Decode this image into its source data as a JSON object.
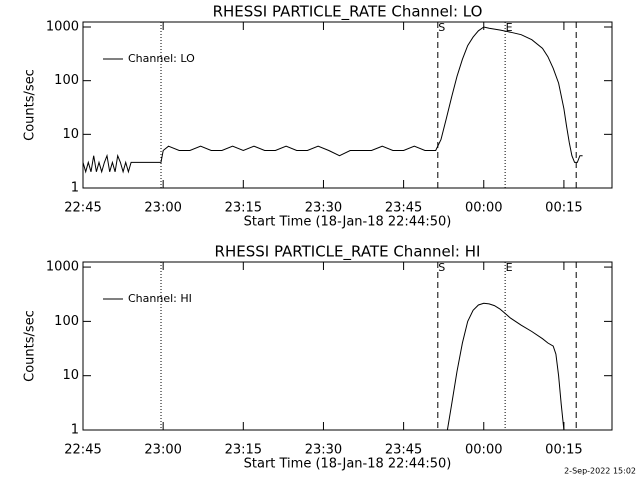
{
  "chart_data": [
    {
      "type": "line",
      "title": "RHESSI PARTICLE_RATE Channel: LO",
      "xlabel": "Start Time (18-Jan-18 22:44:50)",
      "ylabel": "Counts/sec",
      "log_y": true,
      "legend": "top-left",
      "color": "#000000",
      "xlim": [
        0,
        99
      ],
      "ylim": [
        1,
        1240
      ],
      "xticks": [
        {
          "value": 0,
          "label": "22:45"
        },
        {
          "value": 15,
          "label": "23:00"
        },
        {
          "value": 30,
          "label": "23:15"
        },
        {
          "value": 45,
          "label": "23:30"
        },
        {
          "value": 60,
          "label": "23:45"
        },
        {
          "value": 75,
          "label": "00:00"
        },
        {
          "value": 90,
          "label": "00:15"
        }
      ],
      "yticks": [
        1,
        10,
        100,
        1000
      ],
      "markers": [
        {
          "x": 14.6,
          "style": "dotted"
        },
        {
          "x": 66.4,
          "style": "dashed",
          "label": "S"
        },
        {
          "x": 79,
          "style": "dotted",
          "label": "E"
        },
        {
          "x": 92.3,
          "style": "dashed"
        }
      ],
      "series": [
        {
          "name": "Channel: LO",
          "color": "#000000",
          "x": [
            0,
            0.5,
            1,
            1.5,
            2,
            2.5,
            3,
            3.5,
            4,
            4.5,
            5,
            5.5,
            6,
            6.5,
            7,
            7.5,
            8,
            8.5,
            9,
            9.5,
            10,
            14.6,
            15,
            16,
            18,
            20,
            22,
            24,
            26,
            28,
            30,
            32,
            34,
            36,
            38,
            40,
            42,
            44,
            46,
            48,
            50,
            52,
            54,
            56,
            58,
            60,
            62,
            64,
            65,
            66,
            67,
            68,
            69,
            70,
            71,
            72,
            73,
            74,
            75,
            76,
            78,
            80,
            82,
            84,
            86,
            87,
            88,
            89,
            90,
            90.5,
            91,
            91.5,
            92,
            92.5,
            93,
            93.5
          ],
          "values": [
            3,
            2,
            3,
            2,
            4,
            2,
            3,
            2,
            3,
            4,
            2,
            3,
            2,
            4,
            3,
            2,
            3,
            2,
            3,
            3,
            3,
            3,
            5,
            6,
            5,
            5,
            6,
            5,
            5,
            6,
            5,
            6,
            5,
            5,
            6,
            5,
            5,
            6,
            5,
            4,
            5,
            5,
            5,
            6,
            5,
            5,
            6,
            5,
            5,
            5,
            8,
            20,
            50,
            120,
            250,
            450,
            650,
            850,
            1000,
            950,
            880,
            800,
            720,
            580,
            400,
            280,
            170,
            90,
            30,
            14,
            7,
            4,
            3,
            3,
            4,
            4
          ]
        }
      ]
    },
    {
      "type": "line",
      "title": "RHESSI PARTICLE_RATE Channel: HI",
      "xlabel": "Start Time (18-Jan-18 22:44:50)",
      "ylabel": "Counts/sec",
      "log_y": true,
      "legend": "top-left",
      "color": "#000000",
      "xlim": [
        0,
        99
      ],
      "ylim": [
        1,
        1240
      ],
      "xticks": [
        {
          "value": 0,
          "label": "22:45"
        },
        {
          "value": 15,
          "label": "23:00"
        },
        {
          "value": 30,
          "label": "23:15"
        },
        {
          "value": 45,
          "label": "23:30"
        },
        {
          "value": 60,
          "label": "23:45"
        },
        {
          "value": 75,
          "label": "00:00"
        },
        {
          "value": 90,
          "label": "00:15"
        }
      ],
      "yticks": [
        1,
        10,
        100,
        1000
      ],
      "markers": [
        {
          "x": 14.6,
          "style": "dotted"
        },
        {
          "x": 66.4,
          "style": "dashed",
          "label": "S"
        },
        {
          "x": 79,
          "style": "dotted",
          "label": "E"
        },
        {
          "x": 92.3,
          "style": "dashed"
        }
      ],
      "series": [
        {
          "name": "Channel: HI",
          "color": "#000000",
          "x": [
            68.2,
            69,
            70,
            71,
            72,
            73,
            74,
            75,
            76,
            77,
            78,
            79,
            80,
            82,
            84,
            86,
            87,
            88,
            88.5,
            89,
            89.5,
            90
          ],
          "values": [
            1,
            3,
            12,
            40,
            100,
            160,
            200,
            215,
            210,
            195,
            170,
            140,
            115,
            85,
            65,
            48,
            40,
            35,
            25,
            10,
            3,
            1
          ]
        }
      ]
    }
  ],
  "footer": "2-Sep-2022 15:02"
}
